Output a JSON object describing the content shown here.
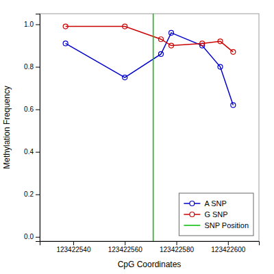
{
  "chart_data": {
    "type": "line",
    "xlabel": "CpG Coordinates",
    "ylabel": "Methylation Frequency",
    "x": [
      123422537,
      123422560,
      123422574,
      123422578,
      123422590,
      123422597,
      123422602
    ],
    "series": [
      {
        "name": "A SNP",
        "color": "#0000cc",
        "marker": "circle",
        "values": [
          0.91,
          0.75,
          0.86,
          0.96,
          0.9,
          0.8,
          0.62
        ]
      },
      {
        "name": "G SNP",
        "color": "#cc0000",
        "marker": "circle",
        "values": [
          0.99,
          0.99,
          0.93,
          0.9,
          0.91,
          0.92,
          0.87
        ]
      }
    ],
    "vline": {
      "name": "SNP Position",
      "color": "#00bb00",
      "value": 123422571
    },
    "xlim": [
      123422527,
      123422612
    ],
    "ylim": [
      -0.02,
      1.05
    ],
    "xticks": [
      123422540,
      123422560,
      123422580,
      123422600
    ],
    "yticks": [
      {
        "value": 0.0,
        "label": "0.0"
      },
      0.2,
      0.4,
      0.6,
      0.8,
      {
        "value": 1.0,
        "label": "1.0"
      }
    ],
    "grid": false,
    "legend": "lower right"
  }
}
